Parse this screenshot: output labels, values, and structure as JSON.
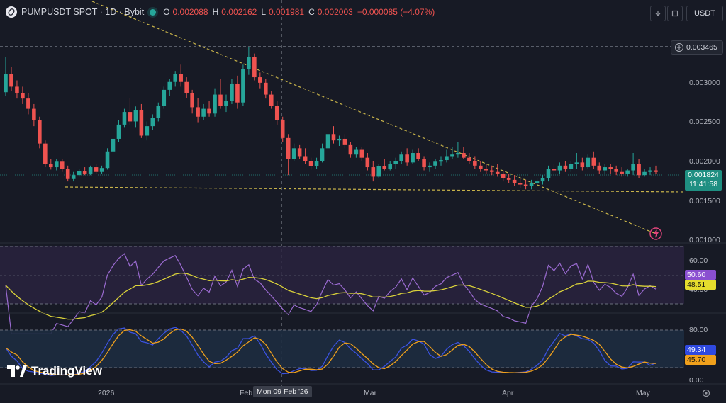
{
  "header": {
    "symbol": "PUMPUSDT SPOT · 1D · Bybit",
    "open_label": "O",
    "open": "0.002088",
    "high_label": "H",
    "high": "0.002162",
    "low_label": "L",
    "low": "0.001981",
    "close_label": "C",
    "close": "0.002003",
    "change": "−0.000085 (−4.07%)",
    "currency": "USDT"
  },
  "price_axis": {
    "ticks": [
      "0.003000",
      "0.002500",
      "0.002000",
      "0.001500",
      "0.001000"
    ],
    "marker": "0.003465",
    "last_price": "0.001824",
    "countdown": "11:41:58"
  },
  "rsi_axis": {
    "ticks": [
      "60.00",
      "40.00"
    ],
    "rsi": "50.60",
    "rsi_ma": "48.51"
  },
  "stoch_axis": {
    "ticks": [
      "80.00",
      "0.00"
    ],
    "k": "49.34",
    "d": "45.70"
  },
  "time_axis": {
    "labels": [
      "2026",
      "Feb",
      "Mar",
      "Apr",
      "May"
    ],
    "crosshair": "Mon 09 Feb '26"
  },
  "branding": "TradingView",
  "colors": {
    "bg": "#171a25",
    "up": "#26a69a",
    "down": "#ef5350",
    "trend": "#c9b44a",
    "rsi": "#9b6bd1",
    "rsi_ma": "#d9d13a",
    "stoch_k": "#3b52e0",
    "stoch_d": "#f0a01c"
  },
  "chart_data": {
    "type": "candlestick",
    "price_range": [
      0.00092,
      0.00364
    ],
    "candles": [
      [
        0.00283,
        0.00328,
        0.00278,
        0.00306
      ],
      [
        0.00306,
        0.00315,
        0.00285,
        0.0029
      ],
      [
        0.0029,
        0.00298,
        0.00275,
        0.00282
      ],
      [
        0.00282,
        0.0029,
        0.00268,
        0.00275
      ],
      [
        0.00275,
        0.00282,
        0.00255,
        0.00262
      ],
      [
        0.00262,
        0.00268,
        0.0024,
        0.00248
      ],
      [
        0.00248,
        0.00252,
        0.00212,
        0.00218
      ],
      [
        0.00218,
        0.00222,
        0.00188,
        0.00192
      ],
      [
        0.00192,
        0.00198,
        0.00185,
        0.00188
      ],
      [
        0.00188,
        0.00198,
        0.00184,
        0.00195
      ],
      [
        0.00195,
        0.00198,
        0.00182,
        0.00186
      ],
      [
        0.00186,
        0.0019,
        0.0017,
        0.00173
      ],
      [
        0.00173,
        0.00182,
        0.0017,
        0.00178
      ],
      [
        0.00178,
        0.00186,
        0.00176,
        0.00183
      ],
      [
        0.00183,
        0.00188,
        0.00178,
        0.0018
      ],
      [
        0.0018,
        0.0019,
        0.00178,
        0.00188
      ],
      [
        0.00188,
        0.00192,
        0.0018,
        0.00182
      ],
      [
        0.00182,
        0.0019,
        0.0018,
        0.00187
      ],
      [
        0.00187,
        0.00212,
        0.00185,
        0.00208
      ],
      [
        0.00208,
        0.00228,
        0.00204,
        0.00224
      ],
      [
        0.00224,
        0.00248,
        0.0022,
        0.00242
      ],
      [
        0.00242,
        0.00262,
        0.00238,
        0.00258
      ],
      [
        0.00258,
        0.00276,
        0.00242,
        0.00246
      ],
      [
        0.00246,
        0.00265,
        0.00238,
        0.0026
      ],
      [
        0.0026,
        0.00268,
        0.00225,
        0.00228
      ],
      [
        0.00228,
        0.00246,
        0.00222,
        0.0024
      ],
      [
        0.0024,
        0.00255,
        0.00235,
        0.0025
      ],
      [
        0.0025,
        0.0027,
        0.00246,
        0.00266
      ],
      [
        0.00266,
        0.0029,
        0.00262,
        0.00286
      ],
      [
        0.00286,
        0.003,
        0.00278,
        0.00296
      ],
      [
        0.00296,
        0.0031,
        0.0029,
        0.00306
      ],
      [
        0.00306,
        0.00318,
        0.0029,
        0.00296
      ],
      [
        0.00296,
        0.00302,
        0.00276,
        0.00282
      ],
      [
        0.00282,
        0.00286,
        0.00256,
        0.00264
      ],
      [
        0.00264,
        0.00276,
        0.00245,
        0.00252
      ],
      [
        0.00252,
        0.00268,
        0.00248,
        0.00262
      ],
      [
        0.00262,
        0.00272,
        0.00252,
        0.00256
      ],
      [
        0.00256,
        0.00288,
        0.00252,
        0.0028
      ],
      [
        0.0028,
        0.003,
        0.00262,
        0.00266
      ],
      [
        0.00266,
        0.0028,
        0.00258,
        0.00272
      ],
      [
        0.00272,
        0.003,
        0.00268,
        0.00294
      ],
      [
        0.00294,
        0.00304,
        0.00262,
        0.0027
      ],
      [
        0.0027,
        0.00318,
        0.00266,
        0.00312
      ],
      [
        0.00312,
        0.0034,
        0.00305,
        0.00328
      ],
      [
        0.00328,
        0.00332,
        0.00298,
        0.00302
      ],
      [
        0.00302,
        0.00308,
        0.00288,
        0.00295
      ],
      [
        0.00295,
        0.003,
        0.00275,
        0.0028
      ],
      [
        0.0028,
        0.00285,
        0.00262,
        0.00266
      ],
      [
        0.00266,
        0.00272,
        0.00242,
        0.00248
      ],
      [
        0.00248,
        0.00252,
        0.0022,
        0.00225
      ],
      [
        0.00225,
        0.0023,
        0.00178,
        0.00198
      ],
      [
        0.00198,
        0.00218,
        0.00196,
        0.00212
      ],
      [
        0.00212,
        0.00216,
        0.00198,
        0.00202
      ],
      [
        0.00202,
        0.00212,
        0.00192,
        0.00196
      ],
      [
        0.00196,
        0.002,
        0.00185,
        0.00189
      ],
      [
        0.00189,
        0.002,
        0.00186,
        0.00196
      ],
      [
        0.00196,
        0.00218,
        0.00194,
        0.00212
      ],
      [
        0.00212,
        0.00234,
        0.0021,
        0.0023
      ],
      [
        0.0023,
        0.0024,
        0.00218,
        0.00222
      ],
      [
        0.00222,
        0.00228,
        0.00215,
        0.00224
      ],
      [
        0.00224,
        0.0023,
        0.00212,
        0.00216
      ],
      [
        0.00216,
        0.0022,
        0.002,
        0.00204
      ],
      [
        0.00204,
        0.00214,
        0.002,
        0.0021
      ],
      [
        0.0021,
        0.00214,
        0.00196,
        0.002
      ],
      [
        0.002,
        0.00206,
        0.00184,
        0.00188
      ],
      [
        0.00188,
        0.00196,
        0.0017,
        0.00176
      ],
      [
        0.00176,
        0.00192,
        0.00174,
        0.00189
      ],
      [
        0.00189,
        0.00198,
        0.00184,
        0.00186
      ],
      [
        0.00186,
        0.00196,
        0.00184,
        0.00192
      ],
      [
        0.00192,
        0.002,
        0.00186,
        0.00196
      ],
      [
        0.00196,
        0.00208,
        0.00192,
        0.00204
      ],
      [
        0.00204,
        0.00212,
        0.0019,
        0.00194
      ],
      [
        0.00194,
        0.0021,
        0.00192,
        0.00206
      ],
      [
        0.00206,
        0.00212,
        0.00196,
        0.00198
      ],
      [
        0.00198,
        0.00202,
        0.00184,
        0.00188
      ],
      [
        0.00188,
        0.00194,
        0.00182,
        0.0019
      ],
      [
        0.0019,
        0.00198,
        0.00186,
        0.00195
      ],
      [
        0.00195,
        0.00202,
        0.0019,
        0.00197
      ],
      [
        0.00197,
        0.0021,
        0.00194,
        0.00202
      ],
      [
        0.00202,
        0.00214,
        0.00198,
        0.00204
      ],
      [
        0.00204,
        0.0022,
        0.002,
        0.00206
      ],
      [
        0.00206,
        0.00214,
        0.00198,
        0.002
      ],
      [
        0.002,
        0.00206,
        0.00192,
        0.00196
      ],
      [
        0.00196,
        0.00202,
        0.00186,
        0.0019
      ],
      [
        0.0019,
        0.00196,
        0.00182,
        0.00186
      ],
      [
        0.00186,
        0.00192,
        0.0018,
        0.00184
      ],
      [
        0.00184,
        0.0019,
        0.00178,
        0.00182
      ],
      [
        0.00182,
        0.00192,
        0.00176,
        0.0018
      ],
      [
        0.0018,
        0.00184,
        0.0017,
        0.00174
      ],
      [
        0.00174,
        0.0018,
        0.00168,
        0.00172
      ],
      [
        0.00172,
        0.00178,
        0.00164,
        0.00168
      ],
      [
        0.00168,
        0.00174,
        0.00162,
        0.00166
      ],
      [
        0.00166,
        0.00172,
        0.0016,
        0.00164
      ],
      [
        0.00164,
        0.00172,
        0.0016,
        0.00168
      ],
      [
        0.00168,
        0.00174,
        0.00164,
        0.0017
      ],
      [
        0.0017,
        0.00178,
        0.00166,
        0.00174
      ],
      [
        0.00174,
        0.0019,
        0.0017,
        0.00186
      ],
      [
        0.00186,
        0.00192,
        0.0018,
        0.00184
      ],
      [
        0.00184,
        0.00194,
        0.0018,
        0.0019
      ],
      [
        0.0019,
        0.00196,
        0.00182,
        0.00186
      ],
      [
        0.00186,
        0.00196,
        0.00182,
        0.00192
      ],
      [
        0.00192,
        0.00206,
        0.00186,
        0.00194
      ],
      [
        0.00194,
        0.002,
        0.00184,
        0.00188
      ],
      [
        0.00188,
        0.00204,
        0.00186,
        0.002
      ],
      [
        0.002,
        0.00208,
        0.00186,
        0.0019
      ],
      [
        0.0019,
        0.00194,
        0.0018,
        0.00184
      ],
      [
        0.00184,
        0.00192,
        0.0018,
        0.00188
      ],
      [
        0.00188,
        0.00192,
        0.0018,
        0.00186
      ],
      [
        0.00186,
        0.0019,
        0.00178,
        0.00182
      ],
      [
        0.00182,
        0.00188,
        0.00176,
        0.0018
      ],
      [
        0.0018,
        0.00186,
        0.00176,
        0.00184
      ],
      [
        0.00184,
        0.00206,
        0.00178,
        0.00192
      ],
      [
        0.00192,
        0.00198,
        0.00174,
        0.00178
      ],
      [
        0.00178,
        0.00186,
        0.00176,
        0.00182
      ],
      [
        0.00182,
        0.00188,
        0.00178,
        0.00184
      ],
      [
        0.00184,
        0.0019,
        0.0018,
        0.00182
      ]
    ],
    "rsi_range": [
      25,
      90
    ],
    "stoch_range": [
      -10,
      118
    ]
  }
}
